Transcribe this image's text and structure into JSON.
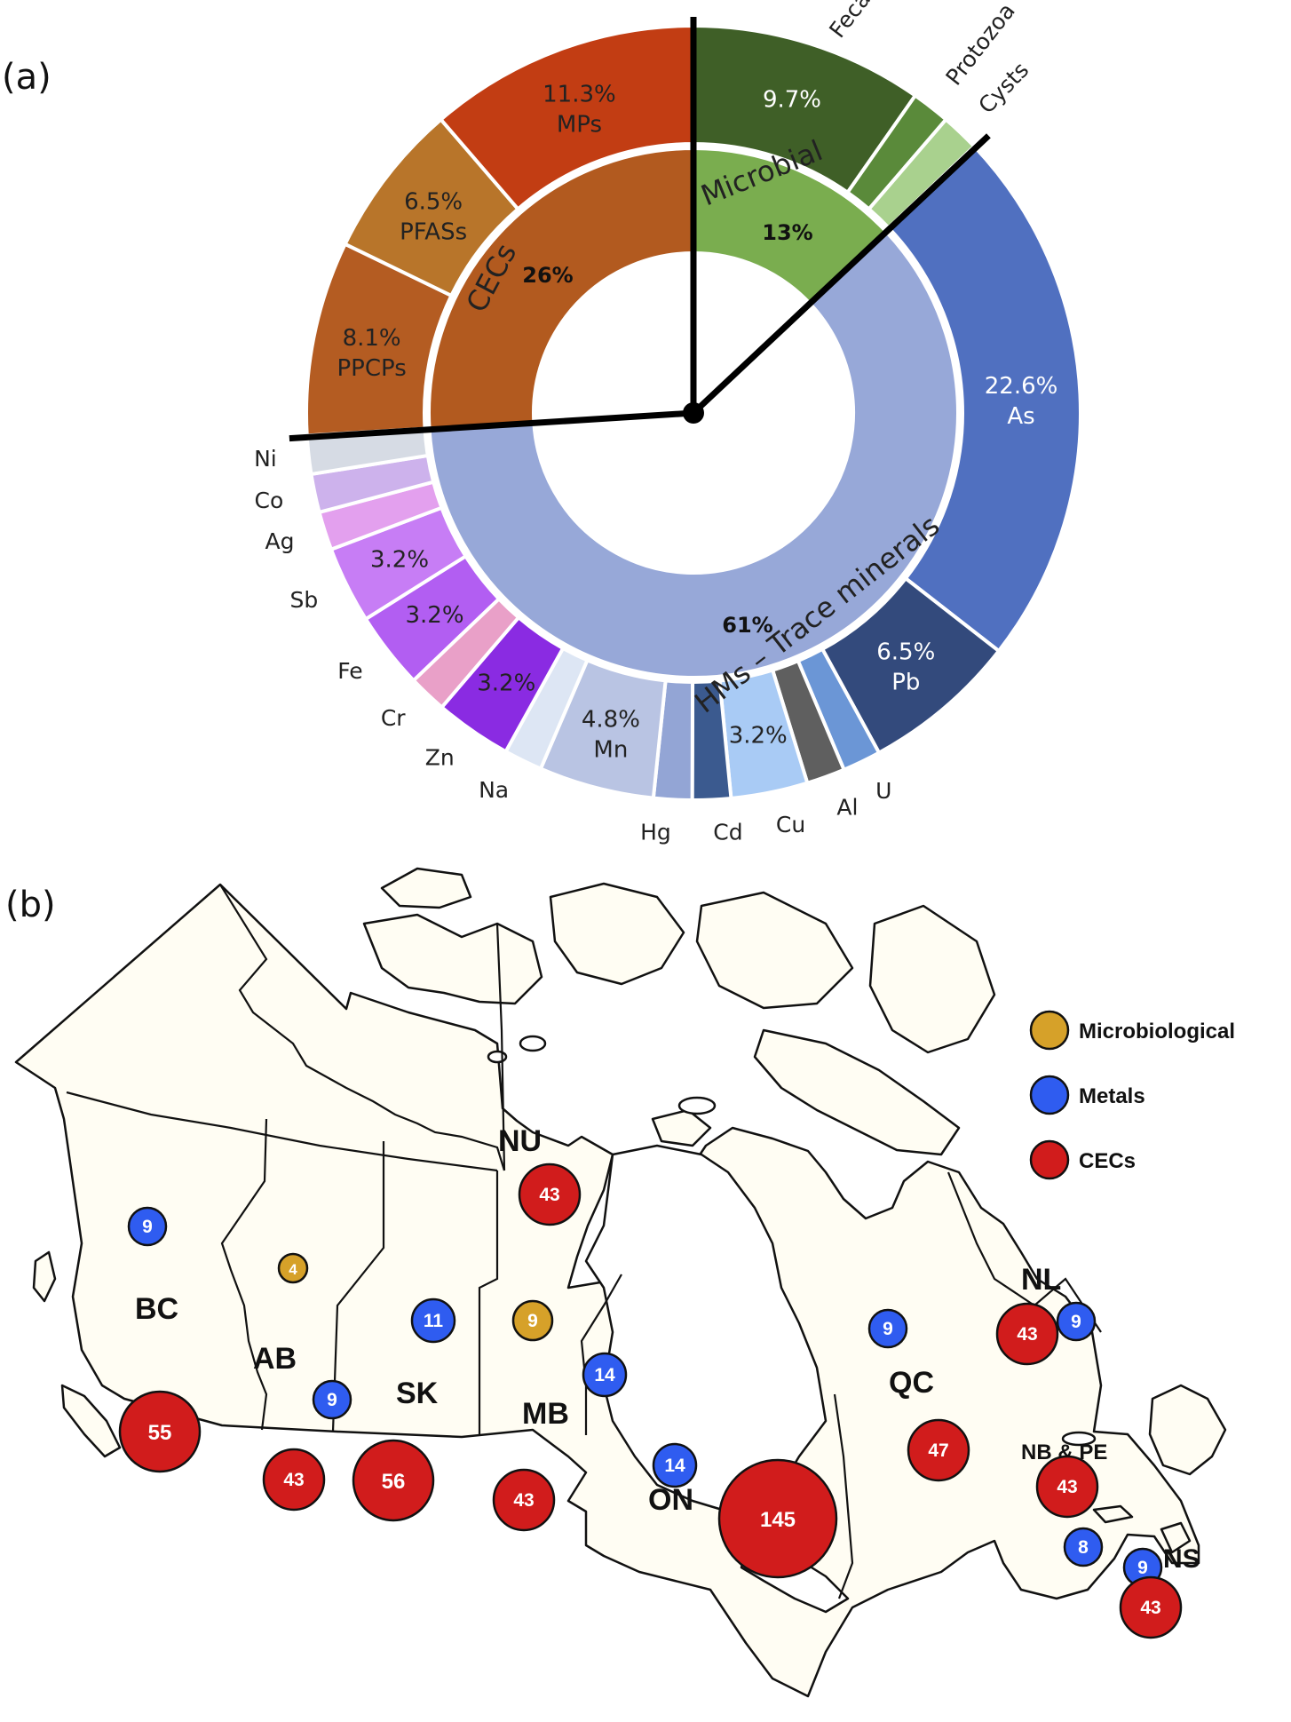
{
  "panels": {
    "a": "(a)",
    "b": "(b)"
  },
  "chart_data": [
    {
      "type": "pie",
      "chart_style": "sunburst",
      "inner_ring": [
        {
          "name": "HMs – Trace minerals",
          "percent_label": "61%",
          "value": 61,
          "color": "#97a8d8"
        },
        {
          "name": "CECs",
          "percent_label": "26%",
          "value": 26,
          "color": "#b25a1f"
        },
        {
          "name": "Microbial",
          "percent_label": "13%",
          "value": 13,
          "color": "#7aad4f"
        }
      ],
      "outer_ring": [
        {
          "name": "Fecal bacteria",
          "group": "Microbial",
          "value": 9.7,
          "percent_label": "9.7%",
          "color": "#3f5f27"
        },
        {
          "name": "Protozoa",
          "group": "Microbial",
          "value": 1.6,
          "percent_label": "",
          "color": "#5a8a3a"
        },
        {
          "name": "Cysts",
          "group": "Microbial",
          "value": 1.6,
          "percent_label": "",
          "color": "#a9d18e"
        },
        {
          "name": "As",
          "group": "HMs",
          "value": 22.6,
          "percent_label": "22.6%",
          "color": "#5070c0"
        },
        {
          "name": "Pb",
          "group": "HMs",
          "value": 6.5,
          "percent_label": "6.5%",
          "color": "#334a7c"
        },
        {
          "name": "U",
          "group": "HMs",
          "value": 1.6,
          "percent_label": "",
          "color": "#6b96d6"
        },
        {
          "name": "Al",
          "group": "HMs",
          "value": 1.6,
          "percent_label": "",
          "color": "#5f5f5f"
        },
        {
          "name": "Cu",
          "group": "HMs",
          "value": 3.2,
          "percent_label": "3.2%",
          "color": "#a9cbf5"
        },
        {
          "name": "Cd",
          "group": "HMs",
          "value": 1.6,
          "percent_label": "",
          "color": "#3b5a8f"
        },
        {
          "name": "Hg",
          "group": "HMs",
          "value": 1.6,
          "percent_label": "",
          "color": "#93a5d5"
        },
        {
          "name": "Mn",
          "group": "HMs",
          "value": 4.8,
          "percent_label": "4.8%",
          "color": "#b9c4e3"
        },
        {
          "name": "Na",
          "group": "HMs",
          "value": 1.6,
          "percent_label": "",
          "color": "#dde6f4"
        },
        {
          "name": "Zn",
          "group": "HMs",
          "value": 3.2,
          "percent_label": "3.2%",
          "color": "#8a2be2"
        },
        {
          "name": "Cr",
          "group": "HMs",
          "value": 1.6,
          "percent_label": "",
          "color": "#e9a0c8"
        },
        {
          "name": "Fe",
          "group": "HMs",
          "value": 3.2,
          "percent_label": "3.2%",
          "color": "#b25ef2"
        },
        {
          "name": "Sb",
          "group": "HMs",
          "value": 3.2,
          "percent_label": "3.2%",
          "color": "#c77df5"
        },
        {
          "name": "Ag",
          "group": "HMs",
          "value": 1.6,
          "percent_label": "",
          "color": "#e3a0ee"
        },
        {
          "name": "Co",
          "group": "HMs",
          "value": 1.6,
          "percent_label": "",
          "color": "#cdb2ec"
        },
        {
          "name": "Ni",
          "group": "HMs",
          "value": 1.6,
          "percent_label": "",
          "color": "#d6dbe4"
        },
        {
          "name": "PPCPs",
          "group": "CECs",
          "value": 8.1,
          "percent_label": "8.1%",
          "color": "#b45c22"
        },
        {
          "name": "PFASs",
          "group": "CECs",
          "value": 6.5,
          "percent_label": "6.5%",
          "color": "#b8752a"
        },
        {
          "name": "MPs",
          "group": "CECs",
          "value": 11.3,
          "percent_label": "11.3%",
          "color": "#c23d13"
        }
      ]
    },
    {
      "type": "scatter",
      "chart_style": "bubble-map",
      "legend": [
        {
          "name": "Microbiological",
          "color": "#d6a129"
        },
        {
          "name": "Metals",
          "color": "#2f5cf0"
        },
        {
          "name": "CECs",
          "color": "#d11c1c"
        }
      ],
      "legend_placement": "top-right",
      "provinces": [
        "BC",
        "AB",
        "SK",
        "MB",
        "ON",
        "QC",
        "NL",
        "NB & PE",
        "NS",
        "NU"
      ],
      "bubbles": [
        {
          "province": "BC",
          "category": "Metals",
          "value": 9
        },
        {
          "province": "BC",
          "category": "CECs",
          "value": 55
        },
        {
          "province": "AB",
          "category": "Microbiological",
          "value": 4
        },
        {
          "province": "AB",
          "category": "Metals",
          "value": 9
        },
        {
          "province": "AB",
          "category": "CECs",
          "value": 43
        },
        {
          "province": "SK",
          "category": "Metals",
          "value": 11
        },
        {
          "province": "SK",
          "category": "CECs",
          "value": 56
        },
        {
          "province": "MB",
          "category": "Microbiological",
          "value": 9
        },
        {
          "province": "MB",
          "category": "Metals",
          "value": 14
        },
        {
          "province": "MB",
          "category": "CECs",
          "value": 43
        },
        {
          "province": "ON",
          "category": "Metals",
          "value": 14
        },
        {
          "province": "ON",
          "category": "CECs",
          "value": 145
        },
        {
          "province": "QC",
          "category": "Metals",
          "value": 9
        },
        {
          "province": "QC",
          "category": "CECs",
          "value": 47
        },
        {
          "province": "NL",
          "category": "Metals",
          "value": 9
        },
        {
          "province": "NL",
          "category": "CECs",
          "value": 43
        },
        {
          "province": "NB & PE",
          "category": "Metals",
          "value": 8
        },
        {
          "province": "NB & PE",
          "category": "CECs",
          "value": 43
        },
        {
          "province": "NS",
          "category": "Metals",
          "value": 9
        },
        {
          "province": "NS",
          "category": "CECs",
          "value": 43
        },
        {
          "province": "NU",
          "category": "CECs",
          "value": 43
        }
      ]
    }
  ]
}
